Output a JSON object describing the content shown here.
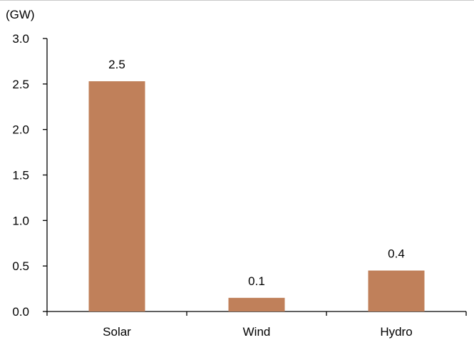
{
  "chart_data": {
    "type": "bar",
    "unit_label": "(GW)",
    "categories": [
      "Solar",
      "Wind",
      "Hydro"
    ],
    "values": [
      2.53,
      0.15,
      0.45
    ],
    "data_labels": [
      "2.5",
      "0.1",
      "0.4"
    ],
    "ylim": [
      0,
      3.0
    ],
    "yticks": [
      "0.0",
      "0.5",
      "1.0",
      "1.5",
      "2.0",
      "2.5",
      "3.0"
    ],
    "grid": false,
    "legend": "none",
    "bar_color": "#C0805A"
  }
}
